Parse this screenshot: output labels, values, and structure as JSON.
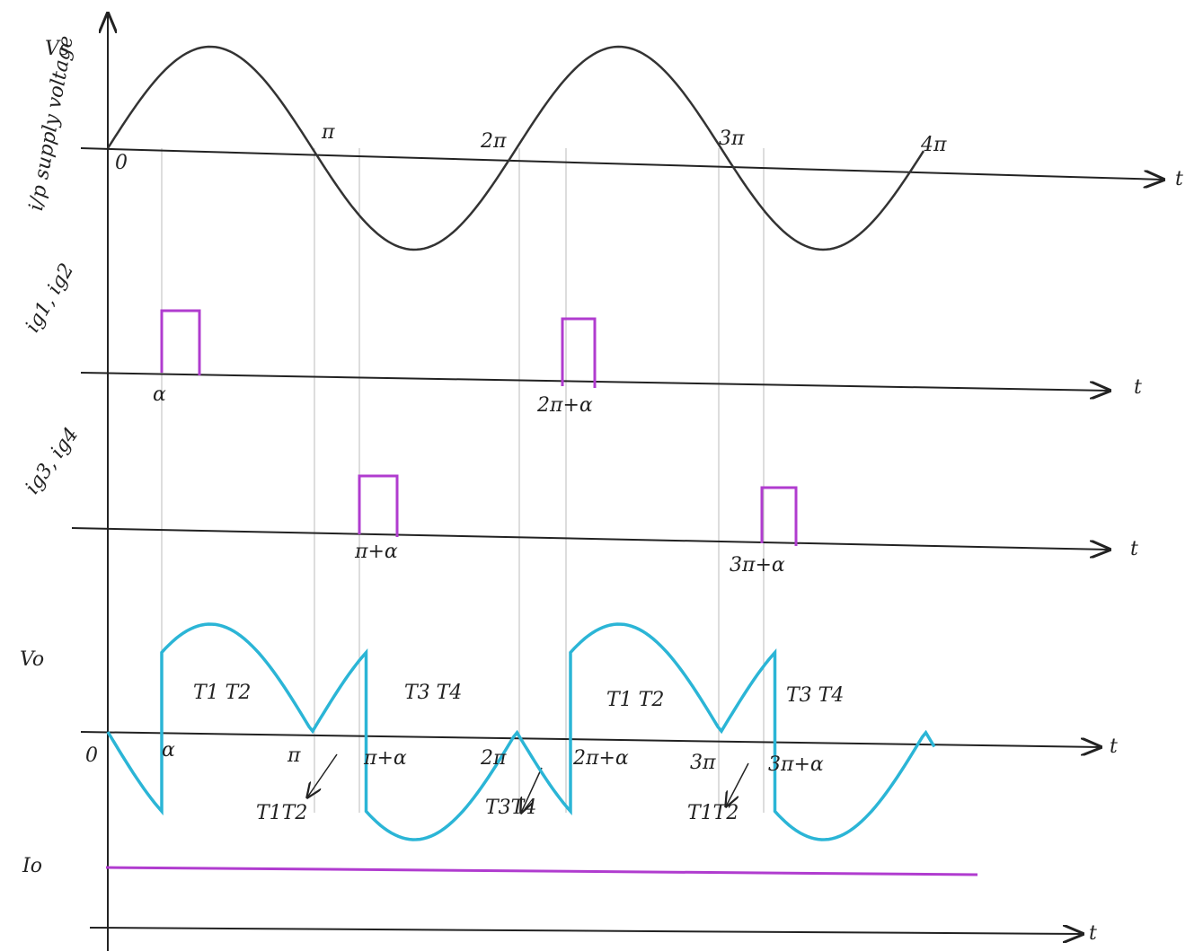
{
  "input_supply": {
    "label": "Vs",
    "caption": "i/p supply voltage",
    "origin": "0",
    "ticks": [
      "π",
      "2π",
      "3π",
      "4π"
    ],
    "axis_label": "t"
  },
  "gate_pulses_1": {
    "label": "ig1, ig2",
    "ticks": [
      "α",
      "2π+α"
    ],
    "axis_label": "t"
  },
  "gate_pulses_2": {
    "label": "ig3, ig4",
    "ticks": [
      "π+α",
      "3π+α"
    ],
    "axis_label": "t"
  },
  "output_voltage": {
    "label": "Vo",
    "origin": "0",
    "ticks": [
      "α",
      "π",
      "π+α",
      "2π",
      "2π+α",
      "3π",
      "3π+α"
    ],
    "conduction_labels": [
      "T1 T2",
      "T3 T4",
      "T1 T2",
      "T3 T4"
    ],
    "negative_labels": [
      "T1T2",
      "T3T4",
      "T1T2"
    ],
    "axis_label": "t"
  },
  "output_current": {
    "label": "Io",
    "axis_label": "t"
  }
}
